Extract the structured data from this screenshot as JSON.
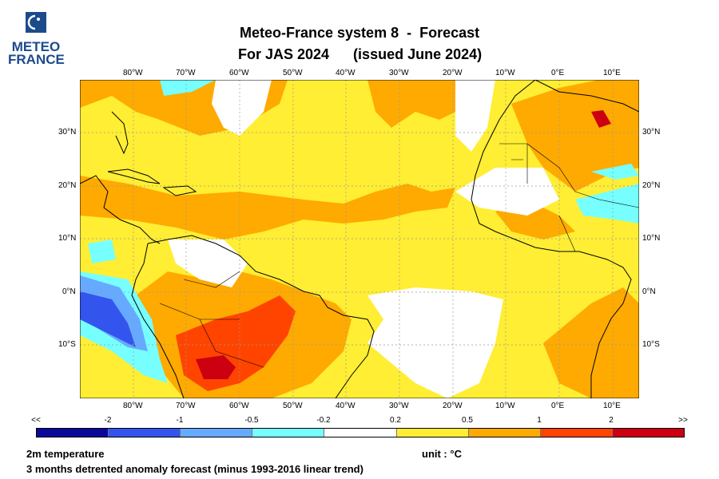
{
  "logo": {
    "line1": "METEO",
    "line2": "FRANCE",
    "color": "#1c4b8c"
  },
  "header": {
    "title_line1": "Meteo-France system 8  -  Forecast",
    "title_line2": "For JAS 2024      (issued June 2024)"
  },
  "map": {
    "lon_labels_top": [
      "80°W",
      "70°W",
      "60°W",
      "50°W",
      "40°W",
      "30°W",
      "20°W",
      "10°W",
      "0°E",
      "10°E"
    ],
    "lon_labels_bottom": [
      "80°W",
      "70°W",
      "60°W",
      "50°W",
      "40°W",
      "30°W",
      "20°W",
      "10°W",
      "0°E",
      "10°E"
    ],
    "lat_labels_left": [
      "30°N",
      "20°N",
      "10°N",
      "0°N",
      "10°S"
    ],
    "lat_labels_right": [
      "30°N",
      "20°N",
      "10°N",
      "0°N",
      "10°S"
    ],
    "lon_range": [
      "90°W",
      "15°E"
    ],
    "lat_range": [
      "20°S",
      "40°N"
    ]
  },
  "colorbar": {
    "labels": [
      "<<",
      "-2",
      "-1",
      "-0.5",
      "-0.2",
      "0.2",
      "0.5",
      "1",
      "2",
      ">>"
    ],
    "colors": [
      "#0a0a9a",
      "#3355ee",
      "#66aaff",
      "#77ffff",
      "#ffffff",
      "#ffee33",
      "#ffaa00",
      "#ff4400",
      "#cc0011"
    ]
  },
  "footer": {
    "variable": "2m temperature",
    "unit": "unit : °C",
    "description": "3 months detrented anomaly forecast (minus 1993-2016 linear trend)"
  }
}
